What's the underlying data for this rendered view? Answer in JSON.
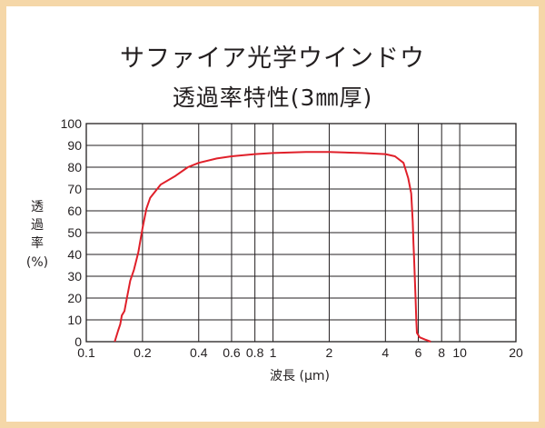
{
  "chart_data": {
    "type": "line",
    "title_line1": "サファイア光学ウインドウ",
    "title_line2": "透過率特性(3㎜厚)",
    "ylabel_lines": [
      "透",
      "過",
      "率",
      "(%)"
    ],
    "xlabel": "波長 (µm)",
    "x_scale": "log",
    "xlim": [
      0.1,
      20
    ],
    "ylim": [
      0,
      100
    ],
    "x_ticks": [
      {
        "value": 0.1,
        "label": "0.1"
      },
      {
        "value": 0.2,
        "label": "0.2"
      },
      {
        "value": 0.4,
        "label": "0.4"
      },
      {
        "value": 0.6,
        "label": "0.6"
      },
      {
        "value": 0.8,
        "label": "0.8"
      },
      {
        "value": 1,
        "label": "1"
      },
      {
        "value": 2,
        "label": "2"
      },
      {
        "value": 4,
        "label": "4"
      },
      {
        "value": 6,
        "label": "6"
      },
      {
        "value": 8,
        "label": "8"
      },
      {
        "value": 10,
        "label": "10"
      },
      {
        "value": 20,
        "label": "20"
      }
    ],
    "x_gridlines": [
      0.2,
      0.4,
      0.6,
      0.8,
      1,
      2,
      4,
      6,
      8,
      10
    ],
    "y_ticks": [
      0,
      10,
      20,
      30,
      40,
      50,
      60,
      70,
      80,
      90,
      100
    ],
    "grid": true,
    "line_color": "#e0202a",
    "series": [
      {
        "points": [
          [
            0.142,
            0
          ],
          [
            0.148,
            5
          ],
          [
            0.152,
            8
          ],
          [
            0.155,
            12
          ],
          [
            0.16,
            14
          ],
          [
            0.165,
            20
          ],
          [
            0.172,
            28
          ],
          [
            0.18,
            33
          ],
          [
            0.19,
            41
          ],
          [
            0.2,
            52
          ],
          [
            0.21,
            61
          ],
          [
            0.22,
            66
          ],
          [
            0.25,
            72
          ],
          [
            0.3,
            76
          ],
          [
            0.35,
            80
          ],
          [
            0.4,
            82
          ],
          [
            0.5,
            84
          ],
          [
            0.6,
            85
          ],
          [
            0.8,
            86
          ],
          [
            1.0,
            86.5
          ],
          [
            1.5,
            87
          ],
          [
            2,
            87
          ],
          [
            3,
            86.5
          ],
          [
            4,
            86
          ],
          [
            4.5,
            85
          ],
          [
            5,
            82
          ],
          [
            5.3,
            75
          ],
          [
            5.5,
            68
          ],
          [
            5.6,
            55
          ],
          [
            5.65,
            45
          ],
          [
            5.7,
            38
          ],
          [
            5.8,
            20
          ],
          [
            5.85,
            10
          ],
          [
            5.9,
            4
          ],
          [
            6.1,
            2
          ],
          [
            6.5,
            1
          ],
          [
            7.0,
            0
          ]
        ]
      }
    ]
  }
}
